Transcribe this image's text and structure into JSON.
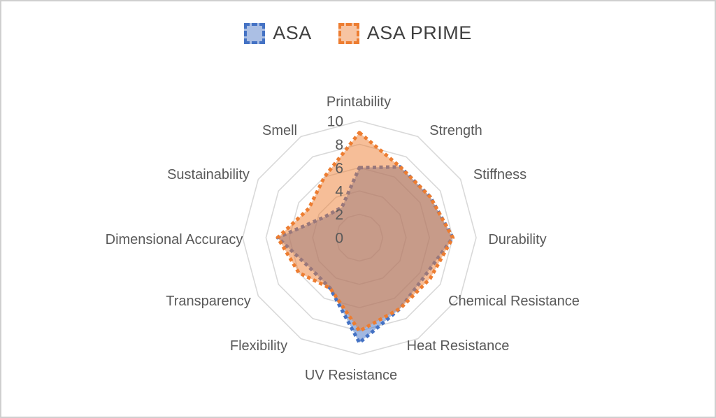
{
  "chart_data": {
    "type": "radar",
    "categories": [
      "Printability",
      "Strength",
      "Stiffness",
      "Durability",
      "Chemical Resistance",
      "Heat Resistance",
      "UV Resistance",
      "Flexibility",
      "Transparency",
      "Dimensional Accuracy",
      "Sustainability",
      "Smell"
    ],
    "series": [
      {
        "name": "ASA",
        "color": "#4472C4",
        "fill_opacity": 0.5,
        "values": [
          6,
          7,
          7,
          8,
          6.5,
          7,
          9,
          5,
          5,
          7,
          3.5,
          3
        ]
      },
      {
        "name": "ASA PRIME",
        "color": "#ED7D31",
        "fill_opacity": 0.5,
        "values": [
          9,
          7,
          7,
          8,
          7,
          7,
          8,
          5,
          6,
          7,
          5,
          6
        ]
      }
    ],
    "axis": {
      "min": 0,
      "max": 10,
      "step": 2,
      "tick_labels": [
        "0",
        "2",
        "4",
        "6",
        "8",
        "10"
      ]
    },
    "style": {
      "grid_color": "#D9D9D9",
      "axis_label_color": "#595959",
      "tick_label_color": "#595959",
      "legend_text_color": "#404040",
      "line_style": "dashed"
    },
    "legend_position": "top",
    "title": ""
  }
}
